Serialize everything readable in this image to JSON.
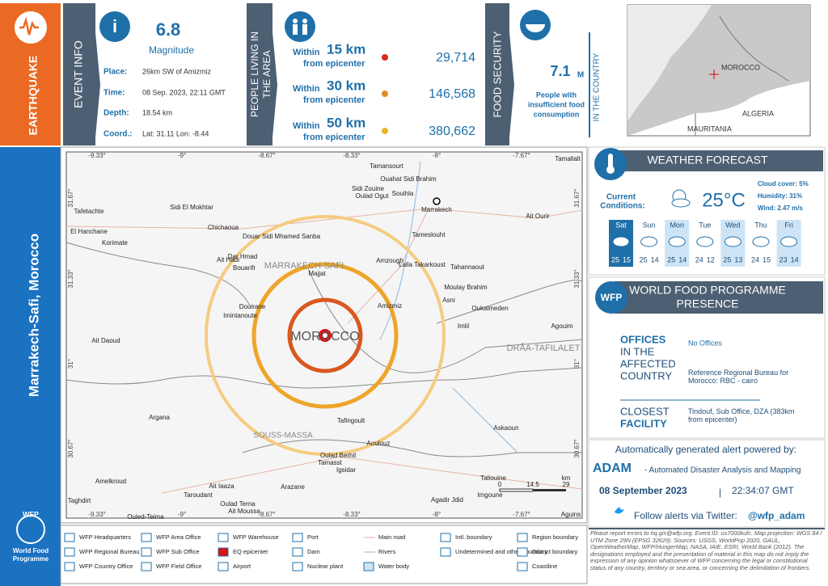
{
  "header": {
    "hazard": "EARTHQUAKE",
    "event_info_label": "EVENT INFO",
    "magnitude": "6.8",
    "magnitude_label": "Magnitude",
    "place_label": "Place:",
    "place": "26km SW of Amizmiz",
    "time_label": "Time:",
    "time": "08 Sep. 2023, 22:11 GMT",
    "depth_label": "Depth:",
    "depth": "18.54 km",
    "coord_label": "Coord.:",
    "coord": "Lat: 31.11 Lon: -8.44"
  },
  "population": {
    "label_lines": [
      "PEOPLE LIVING IN",
      "THE AREA"
    ],
    "rows": [
      {
        "prefix": "Within",
        "distance": "15 km",
        "suffix": "from epicenter",
        "count": "29,714"
      },
      {
        "prefix": "Within",
        "distance": "30 km",
        "suffix": "from epicenter",
        "count": "146,568"
      },
      {
        "prefix": "Within",
        "distance": "50 km",
        "suffix": "from epicenter",
        "count": "380,662"
      }
    ]
  },
  "food_security": {
    "label": "FOOD SECURITY",
    "value": "7.1",
    "unit": "M",
    "caption_lines": [
      "People with",
      "insufficient food",
      "consumption"
    ],
    "scope": "IN THE COUNTRY"
  },
  "inset": {
    "labels": [
      "MOROCCO",
      "ALGERIA",
      "MAURITANIA"
    ]
  },
  "region": "Marrakech-Safi, Morocco",
  "logo": {
    "short": "WFP",
    "lines": [
      "World Food",
      "Programme"
    ]
  },
  "map": {
    "lon_ticks": [
      "-9.33°",
      "-9°",
      "-8.67°",
      "-8.33°",
      "-8°",
      "-7.67°"
    ],
    "lat_ticks": [
      "31.67°",
      "31.33°",
      "31°",
      "30.67°"
    ],
    "places": [
      "Tamansourt",
      "Ouahat Sidi Brahim",
      "Sidi Zouine",
      "Oulad Ogut",
      "Souihla",
      "Marrakech",
      "Ait Ourir",
      "Tamallalt",
      "Sidi El Mokhtar",
      "Chichaoua",
      "Tafetachte",
      "El Hanchane",
      "Korimate",
      "Douar Sidi Mhamed Sanba",
      "Dar Hmad",
      "Ait Hadi",
      "Bouarifr",
      "Majjat",
      "Amzough",
      "Lalla Takarkoust",
      "Tameslouht",
      "Tahannaout",
      "Moulay Brahim",
      "Asni",
      "Oukaimeden",
      "Amizmiz",
      "Douirane",
      "Imintanoute",
      "Imlil",
      "Agouim",
      "Ait Daoud",
      "Argana",
      "Tafingoult",
      "Askaoun",
      "Aoulouz",
      "Oulad Berhil",
      "Tamasst",
      "Igsidar",
      "Amelkroud",
      "Taroudant",
      "Ait Iaaza",
      "Arazane",
      "Oulad Terna",
      "Ait Moussa",
      "Taliouine",
      "Imgoune",
      "Agadir Jdid",
      "Taghdirt",
      "Ouled-Teima",
      "Aguins"
    ],
    "regions": [
      "MARRAKECH-SAFI",
      "MOROCCO",
      "DRÂA-TAFILALET",
      "SOUSS-MASSA"
    ],
    "scale": [
      "0",
      "14.5",
      "29",
      "km"
    ]
  },
  "weather": {
    "title": "WEATHER FORECAST",
    "conditions_lines": [
      "Current",
      "Conditions:"
    ],
    "temperature": "25°C",
    "cloud": "Cloud cover: 5%",
    "humidity": "Humidity: 31%",
    "wind": "Wind: 2.47 m/s",
    "days": [
      {
        "day": "Sat",
        "high": 25,
        "low": 15
      },
      {
        "day": "Sun",
        "high": 25,
        "low": 14
      },
      {
        "day": "Mon",
        "high": 25,
        "low": 14
      },
      {
        "day": "Tue",
        "high": 24,
        "low": 12
      },
      {
        "day": "Wed",
        "high": 25,
        "low": 13
      },
      {
        "day": "Thu",
        "high": 24,
        "low": 15
      },
      {
        "day": "Fri",
        "high": 23,
        "low": 14
      }
    ]
  },
  "presence": {
    "title_lines": [
      "WORLD FOOD PROGRAMME",
      "PRESENCE"
    ],
    "logo": "WFP",
    "offices_label_lines": [
      "OFFICES",
      "IN THE",
      "AFFECTED",
      "COUNTRY"
    ],
    "offices": "No Offices",
    "bureau": "Reference Regional Bureau for Morocco: RBC - cairo",
    "closest_label_lines": [
      "CLOSEST",
      "FACILITY"
    ],
    "closest": "Tindouf, Sub Office, DZA (383km from epicenter)"
  },
  "adam": {
    "intro": "Automatically generated alert powered by:",
    "name": "ADAM",
    "desc": "- Automated Disaster Analysis and Mapping",
    "date": "08 September 2023",
    "time": "22:34:07 GMT",
    "twitter": "Follow alerts via Twitter:",
    "handle": "@wfp_adam"
  },
  "legend": [
    "WFP Headquarters",
    "WFP Regional Bureau",
    "WFP Country Office",
    "WFP Area Office",
    "WFP Sub Office",
    "WFP Field Office",
    "WFP Warehouse",
    "EQ epicenter",
    "Airport",
    "Port",
    "Dam",
    "Nuclear plant",
    "Main road",
    "Rivers",
    "Water body",
    "Intl. boundary",
    "Undetermined and other boundary",
    "Region boundary",
    "District boundary",
    "Coastline"
  ],
  "disclaimer": "Please report errors to hq.gis@wfp.org. Event ID: us7000kufc. Map projection: WGS 84 / UTM Zone 29N (EPSG 32629). Sources: USGS, WorldPop 2020, GAUL, OpenWeatherMap, WFP/HungerMap, NASA, IAIE, ESRI, World Bank (2012). The designations employed and the presentation of material in this map do not imply the expression of any opinion whatsoever of WFP concerning the legal or constitutional status of any country, territory or sea area, or concerning the delimitation of frontiers."
}
